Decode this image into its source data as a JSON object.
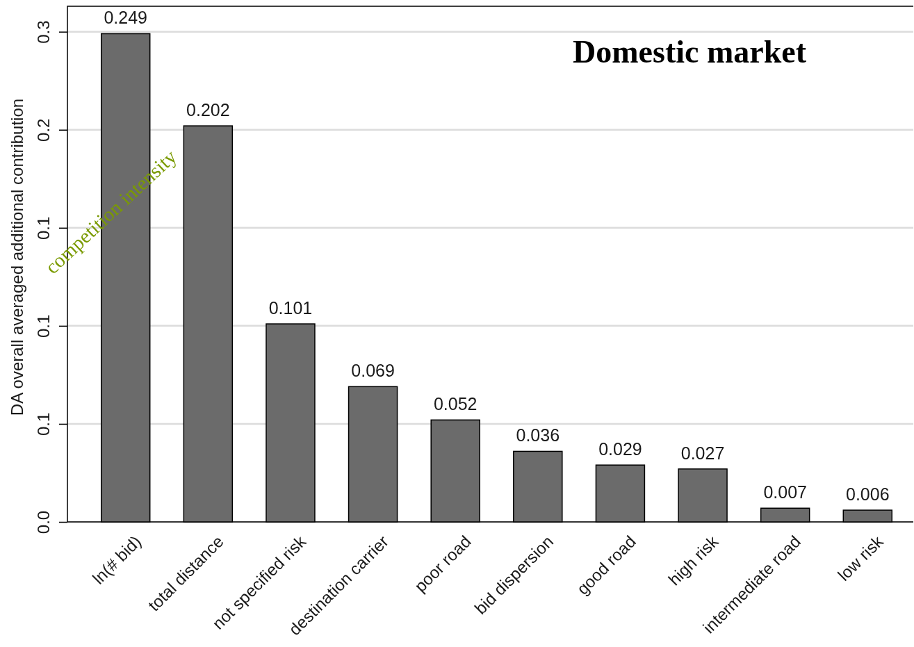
{
  "chart_data": {
    "type": "bar",
    "title": "Domestic market",
    "ylabel": "DA overall averaged additional contribution",
    "annotations": [
      "competition intensity"
    ],
    "categories": [
      "ln(# bid)",
      "total distance",
      "not specified risk",
      "destination carrier",
      "poor road",
      "bid dispersion",
      "good road",
      "high risk",
      "intermediate road",
      "low risk"
    ],
    "values": [
      0.249,
      0.202,
      0.101,
      0.069,
      0.052,
      0.036,
      0.029,
      0.027,
      0.007,
      0.006
    ],
    "color": "#6b6b6b",
    "data_labels": true,
    "grid": "y",
    "ylim": [
      0,
      0.263
    ],
    "yticks": [
      {
        "value": 0,
        "label": "0.0"
      },
      {
        "value": 0.05,
        "label": "0.1"
      },
      {
        "value": 0.1,
        "label": "0.1"
      },
      {
        "value": 0.15,
        "label": "0.1"
      },
      {
        "value": 0.2,
        "label": "0.2"
      },
      {
        "value": 0.25,
        "label": "0.3"
      }
    ]
  }
}
